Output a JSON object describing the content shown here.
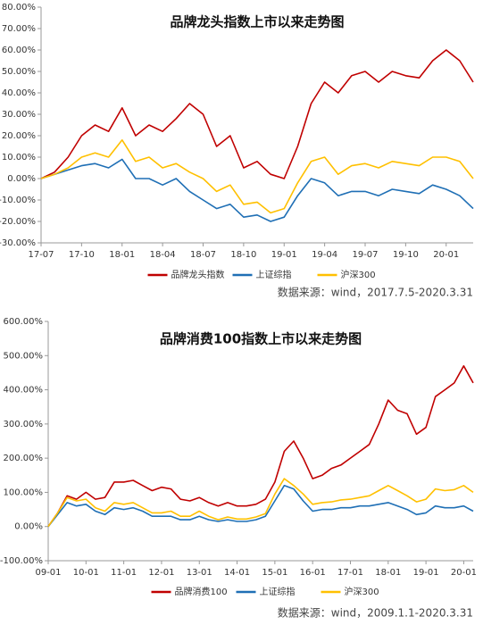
{
  "chart_data": [
    {
      "type": "line",
      "title": "品牌龙头指数上市以来走势图",
      "source": "数据来源：wind，2017.7.5-2020.3.31",
      "categories": [
        "17-07",
        null,
        null,
        "17-10",
        null,
        null,
        "18-01",
        null,
        null,
        "18-04",
        null,
        null,
        "18-07",
        null,
        null,
        "18-10",
        null,
        null,
        "19-01",
        null,
        null,
        "19-04",
        null,
        null,
        "19-07",
        null,
        null,
        "19-10",
        null,
        null,
        "20-01",
        null,
        null
      ],
      "series": [
        {
          "name": "品牌龙头指数",
          "color": "#c00000",
          "values": [
            0,
            3,
            10,
            20,
            25,
            22,
            33,
            20,
            25,
            22,
            28,
            35,
            30,
            15,
            20,
            5,
            8,
            2,
            0,
            15,
            35,
            45,
            40,
            48,
            50,
            45,
            50,
            48,
            47,
            55,
            60,
            55,
            45
          ]
        },
        {
          "name": "上证综指",
          "color": "#1f6fb5",
          "values": [
            0,
            2,
            4,
            6,
            7,
            5,
            9,
            0,
            0,
            -3,
            0,
            -6,
            -10,
            -14,
            -12,
            -18,
            -17,
            -20,
            -18,
            -8,
            0,
            -2,
            -8,
            -6,
            -6,
            -8,
            -5,
            -6,
            -7,
            -3,
            -5,
            -8,
            -14
          ]
        },
        {
          "name": "沪深300",
          "color": "#ffc000",
          "values": [
            0,
            2,
            5,
            10,
            12,
            10,
            18,
            8,
            10,
            5,
            7,
            3,
            0,
            -6,
            -3,
            -12,
            -11,
            -16,
            -14,
            -2,
            8,
            10,
            2,
            6,
            7,
            5,
            8,
            7,
            6,
            10,
            10,
            8,
            0
          ]
        }
      ],
      "ylim": [
        -30,
        80
      ],
      "yticks": [
        {
          "value": -30,
          "label": "-30.00%"
        },
        {
          "value": -20,
          "label": "-20.00%"
        },
        {
          "value": -10,
          "label": "-10.00%"
        },
        {
          "value": 0,
          "label": "0.00%"
        },
        {
          "value": 10,
          "label": "10.00%"
        },
        {
          "value": 20,
          "label": "20.00%"
        },
        {
          "value": 30,
          "label": "30.00%"
        },
        {
          "value": 40,
          "label": "40.00%"
        },
        {
          "value": 50,
          "label": "50.00%"
        },
        {
          "value": 60,
          "label": "60.00%"
        },
        {
          "value": 70,
          "label": "70.00%"
        },
        {
          "value": 80,
          "label": "80.00%"
        }
      ]
    },
    {
      "type": "line",
      "title": "品牌消费100指数上市以来走势图",
      "source": "数据来源：wind，2009.1.1-2020.3.31",
      "categories": [
        "09-01",
        null,
        null,
        null,
        "10-01",
        null,
        null,
        null,
        "11-01",
        null,
        null,
        null,
        "12-01",
        null,
        null,
        null,
        "13-01",
        null,
        null,
        null,
        "14-01",
        null,
        null,
        null,
        "15-01",
        null,
        null,
        null,
        "16-01",
        null,
        null,
        null,
        "17-01",
        null,
        null,
        null,
        "18-01",
        null,
        null,
        null,
        "19-01",
        null,
        null,
        null,
        "20-01",
        null
      ],
      "series": [
        {
          "name": "品牌消费100",
          "color": "#c00000",
          "values": [
            0,
            40,
            90,
            80,
            100,
            80,
            85,
            130,
            130,
            135,
            120,
            105,
            115,
            110,
            80,
            75,
            85,
            70,
            60,
            70,
            60,
            60,
            65,
            80,
            130,
            220,
            250,
            200,
            140,
            150,
            170,
            180,
            200,
            220,
            240,
            300,
            370,
            340,
            330,
            270,
            290,
            380,
            400,
            420,
            470,
            420
          ]
        },
        {
          "name": "上证综指",
          "color": "#1f6fb5",
          "values": [
            0,
            35,
            70,
            60,
            65,
            45,
            35,
            55,
            50,
            55,
            45,
            30,
            30,
            30,
            20,
            20,
            30,
            20,
            15,
            20,
            15,
            15,
            20,
            30,
            75,
            120,
            110,
            75,
            45,
            50,
            50,
            55,
            55,
            60,
            60,
            65,
            70,
            60,
            50,
            35,
            40,
            60,
            55,
            55,
            60,
            45
          ]
        },
        {
          "name": "沪深300",
          "color": "#ffc000",
          "values": [
            0,
            40,
            85,
            75,
            80,
            55,
            45,
            70,
            65,
            70,
            55,
            40,
            40,
            45,
            30,
            30,
            45,
            30,
            20,
            28,
            22,
            22,
            28,
            38,
            95,
            140,
            120,
            95,
            65,
            70,
            72,
            78,
            80,
            85,
            90,
            105,
            120,
            105,
            90,
            72,
            80,
            110,
            105,
            108,
            120,
            100
          ]
        }
      ],
      "ylim": [
        -100,
        600
      ],
      "yticks": [
        {
          "value": -100,
          "label": "-100.00%"
        },
        {
          "value": 0,
          "label": "0.00%"
        },
        {
          "value": 100,
          "label": "100.00%"
        },
        {
          "value": 200,
          "label": "200.00%"
        },
        {
          "value": 300,
          "label": "300.00%"
        },
        {
          "value": 400,
          "label": "400.00%"
        },
        {
          "value": 500,
          "label": "500.00%"
        },
        {
          "value": 600,
          "label": "600.00%"
        }
      ]
    }
  ]
}
